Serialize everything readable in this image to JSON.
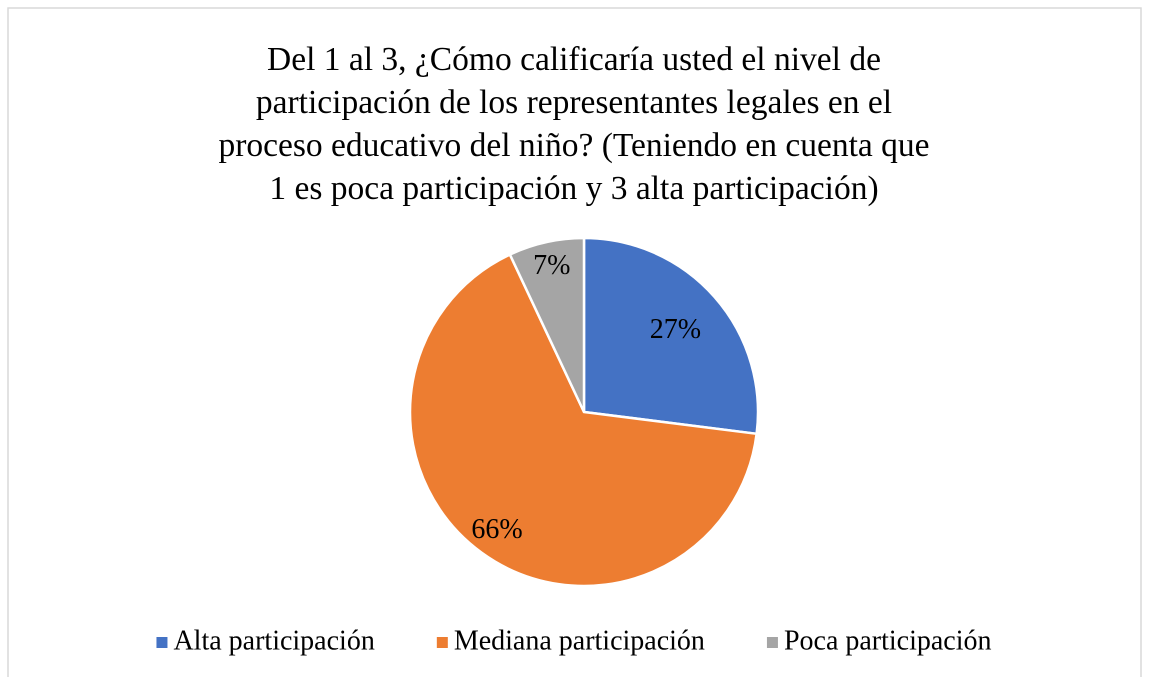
{
  "chart_data": {
    "type": "pie",
    "title": "Del 1 al 3, ¿Cómo calificaría usted el nivel de participación de los representantes legales en el proceso educativo del niño? (Teniendo en cuenta que 1 es poca participación y 3 alta participación)",
    "categories": [
      "Alta participación",
      "Mediana participación",
      "Poca participación"
    ],
    "values": [
      27,
      66,
      7
    ],
    "value_labels": [
      "27%",
      "66%",
      "7%"
    ],
    "colors": [
      "#4472c4",
      "#ed7d31",
      "#a5a5a5"
    ],
    "legend": "bottom"
  }
}
